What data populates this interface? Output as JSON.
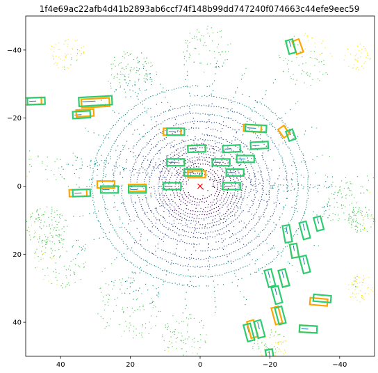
{
  "chart_data": {
    "type": "scatter",
    "title": "1f4e69ac22afb4d41b2893ab6ccf74f148b99dd747240f074663c44efe9eec59",
    "xlabel": "",
    "ylabel": "",
    "xlim": [
      50,
      -50
    ],
    "ylim": [
      -50,
      50
    ],
    "x_ticks": [
      40,
      20,
      0,
      -20,
      -40
    ],
    "y_ticks": [
      -40,
      -20,
      0,
      20,
      40
    ],
    "grid": false,
    "colors": {
      "pred_box": "#ffa500",
      "gt_box": "#2ecc71",
      "ego_marker": "#ff0000",
      "point_cmap": [
        "#440154",
        "#3b528b",
        "#21918c",
        "#5ec962",
        "#fde725"
      ],
      "heading_line": "#1f77b4"
    },
    "ego": {
      "x": 0,
      "y": 0,
      "marker": "x"
    },
    "gt_boxes": [
      {
        "x": 47,
        "y": -25,
        "w": 5,
        "h": 2,
        "angle": 2
      },
      {
        "x": 30,
        "y": -25,
        "w": 9.5,
        "h": 2.6,
        "angle": 3
      },
      {
        "x": 34,
        "y": -21,
        "w": 5,
        "h": 2,
        "angle": 3
      },
      {
        "x": 7,
        "y": -16,
        "w": 5,
        "h": 2,
        "angle": 0
      },
      {
        "x": -16,
        "y": -17,
        "w": 6,
        "h": 2,
        "angle": -3
      },
      {
        "x": -26,
        "y": -15,
        "w": 2,
        "h": 3,
        "angle": 20
      },
      {
        "x": -26,
        "y": -41,
        "w": 2,
        "h": 4,
        "angle": 15
      },
      {
        "x": 1,
        "y": -11,
        "w": 5,
        "h": 2,
        "angle": 2
      },
      {
        "x": -9,
        "y": -11,
        "w": 5,
        "h": 2,
        "angle": 3
      },
      {
        "x": -17,
        "y": -12,
        "w": 5,
        "h": 2,
        "angle": 3
      },
      {
        "x": 7,
        "y": -7,
        "w": 5,
        "h": 2,
        "angle": 0
      },
      {
        "x": -6,
        "y": -7,
        "w": 5,
        "h": 2,
        "angle": 0
      },
      {
        "x": -13,
        "y": -8,
        "w": 5,
        "h": 2,
        "angle": 0
      },
      {
        "x": -10,
        "y": -4,
        "w": 5,
        "h": 2,
        "angle": 0
      },
      {
        "x": 2,
        "y": -4,
        "w": 5,
        "h": 2,
        "angle": 0
      },
      {
        "x": 8,
        "y": 0,
        "w": 5,
        "h": 2,
        "angle": 0
      },
      {
        "x": -9,
        "y": 0,
        "w": 5,
        "h": 2,
        "angle": 0
      },
      {
        "x": 18,
        "y": 1,
        "w": 5,
        "h": 2,
        "angle": 0
      },
      {
        "x": 26,
        "y": 1,
        "w": 5,
        "h": 2,
        "angle": 0
      },
      {
        "x": 34,
        "y": 2,
        "w": 5,
        "h": 2,
        "angle": 2
      },
      {
        "x": -25,
        "y": 14,
        "w": 2,
        "h": 5,
        "angle": 10
      },
      {
        "x": -30,
        "y": 13,
        "w": 2,
        "h": 5,
        "angle": 15
      },
      {
        "x": -34,
        "y": 11,
        "w": 2,
        "h": 4,
        "angle": 15
      },
      {
        "x": -27,
        "y": 19,
        "w": 2,
        "h": 4,
        "angle": 10
      },
      {
        "x": -30,
        "y": 23,
        "w": 2,
        "h": 5,
        "angle": 15
      },
      {
        "x": -20,
        "y": 27,
        "w": 2,
        "h": 5,
        "angle": 15
      },
      {
        "x": -24,
        "y": 27,
        "w": 2,
        "h": 5,
        "angle": 15
      },
      {
        "x": -22,
        "y": 32,
        "w": 2,
        "h": 5,
        "angle": 15
      },
      {
        "x": -23,
        "y": 38,
        "w": 2,
        "h": 5,
        "angle": 15
      },
      {
        "x": -17,
        "y": 42,
        "w": 2,
        "h": 5,
        "angle": 15
      },
      {
        "x": -14,
        "y": 43,
        "w": 2,
        "h": 5,
        "angle": 15
      },
      {
        "x": -35,
        "y": 33,
        "w": 5,
        "h": 2,
        "angle": -5
      },
      {
        "x": -31,
        "y": 42,
        "w": 5,
        "h": 2,
        "angle": -3
      },
      {
        "x": -20,
        "y": 50,
        "w": 2,
        "h": 4,
        "angle": 10
      }
    ],
    "pred_boxes": [
      {
        "x": 48,
        "y": -25,
        "w": 5,
        "h": 2,
        "angle": 2
      },
      {
        "x": 30,
        "y": -24.5,
        "w": 8,
        "h": 2.5,
        "angle": 3
      },
      {
        "x": 33,
        "y": -21.5,
        "w": 5,
        "h": 2,
        "angle": 3
      },
      {
        "x": 8,
        "y": -16,
        "w": 5,
        "h": 2,
        "angle": 0
      },
      {
        "x": -15,
        "y": -17,
        "w": 5,
        "h": 2,
        "angle": -3
      },
      {
        "x": -24,
        "y": -16,
        "w": 2,
        "h": 3,
        "angle": 35
      },
      {
        "x": -28,
        "y": -41,
        "w": 2,
        "h": 4,
        "angle": 20
      },
      {
        "x": 1,
        "y": -11,
        "w": 5,
        "h": 2,
        "angle": 2
      },
      {
        "x": 7,
        "y": -7,
        "w": 5,
        "h": 2,
        "angle": 0
      },
      {
        "x": 1,
        "y": -3.5,
        "w": 5,
        "h": 2,
        "angle": 0
      },
      {
        "x": 27,
        "y": -0.5,
        "w": 5,
        "h": 2,
        "angle": 0
      },
      {
        "x": 18,
        "y": 0.5,
        "w": 5,
        "h": 2,
        "angle": 0
      },
      {
        "x": 35,
        "y": 2,
        "w": 5,
        "h": 2,
        "angle": 2
      },
      {
        "x": -27,
        "y": 19,
        "w": 2,
        "h": 4,
        "angle": 10
      },
      {
        "x": -24,
        "y": 27,
        "w": 2,
        "h": 5,
        "angle": 15
      },
      {
        "x": -22,
        "y": 38,
        "w": 2,
        "h": 5,
        "angle": 15
      },
      {
        "x": -34,
        "y": 34,
        "w": 5,
        "h": 2,
        "angle": -5
      },
      {
        "x": -31,
        "y": 42,
        "w": 5,
        "h": 2,
        "angle": -3
      },
      {
        "x": -15,
        "y": 42,
        "w": 2,
        "h": 5,
        "angle": 15
      },
      {
        "x": -20,
        "y": 50,
        "w": 2,
        "h": 4,
        "angle": 10
      }
    ],
    "points": {
      "rings": [
        4,
        5,
        6,
        7,
        8,
        9,
        10,
        11,
        12,
        13,
        14.5,
        16,
        18,
        20,
        22.5,
        25,
        28,
        31
      ],
      "clusters": [
        {
          "x": 38,
          "y": -39,
          "r": 5,
          "n": 60
        },
        {
          "x": 20,
          "y": -33,
          "r": 7,
          "n": 120
        },
        {
          "x": -2,
          "y": -40,
          "r": 7,
          "n": 70
        },
        {
          "x": -30,
          "y": -37,
          "r": 8,
          "n": 80
        },
        {
          "x": -45,
          "y": -38,
          "r": 4,
          "n": 40
        },
        {
          "x": 44,
          "y": 12,
          "r": 6,
          "n": 120
        },
        {
          "x": 40,
          "y": 22,
          "r": 8,
          "n": 110
        },
        {
          "x": 20,
          "y": 35,
          "r": 10,
          "n": 120
        },
        {
          "x": 5,
          "y": 44,
          "r": 7,
          "n": 80
        },
        {
          "x": -46,
          "y": 10,
          "r": 4,
          "n": 80
        },
        {
          "x": -46,
          "y": 30,
          "r": 4,
          "n": 60
        },
        {
          "x": -20,
          "y": 47,
          "r": 5,
          "n": 80
        },
        {
          "x": -40,
          "y": 6,
          "r": 5,
          "n": 60
        }
      ],
      "count": 2600,
      "seed": 42
    }
  }
}
